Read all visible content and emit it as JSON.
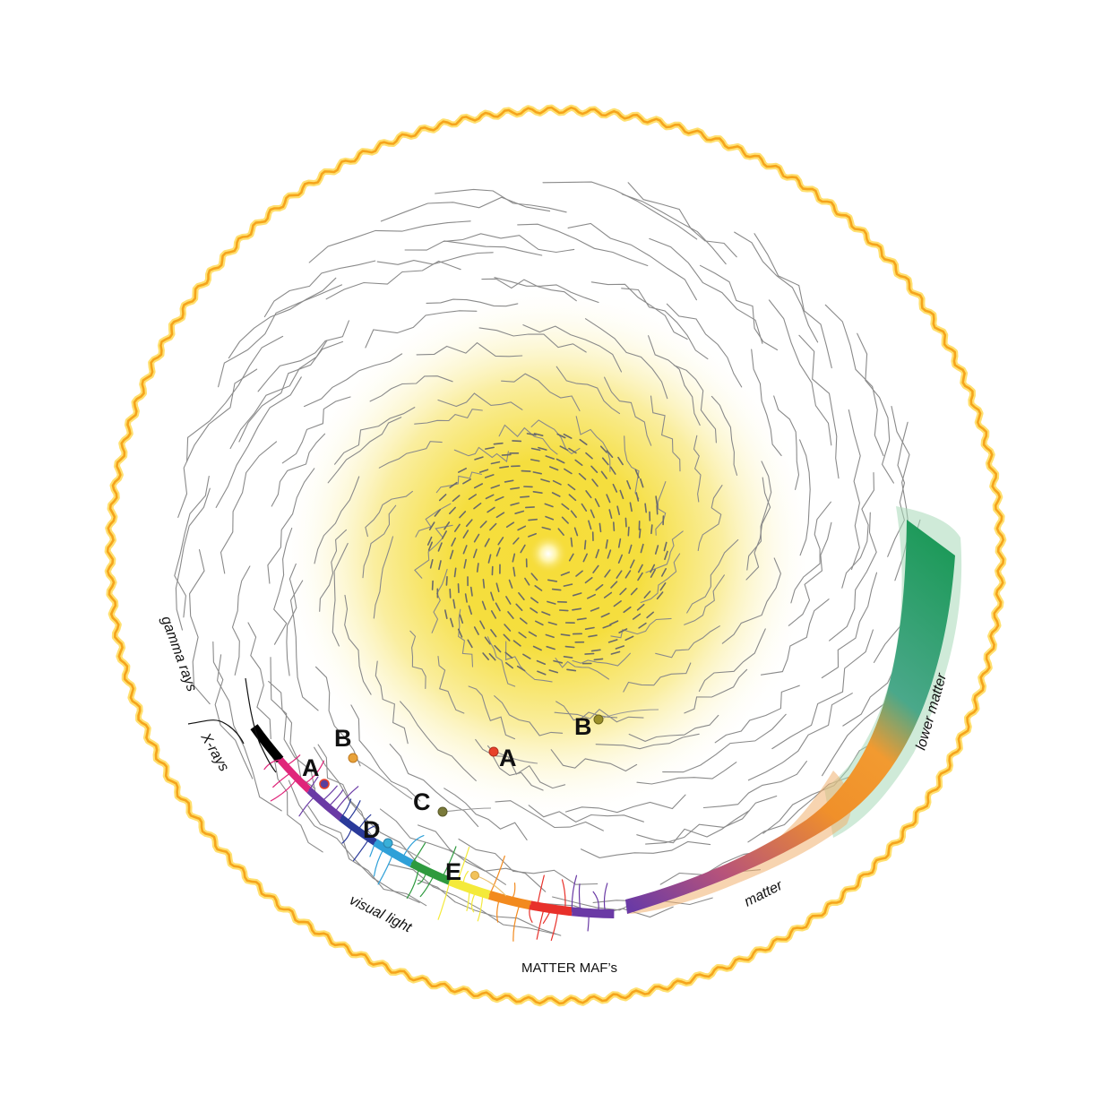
{
  "labels": {
    "gamma_rays": "gamma rays",
    "x_rays": "X-rays",
    "visual_light": "visual light",
    "matter_mafs": "MATTER MAF’s",
    "matter": "matter",
    "lower_matter": "lower matter"
  },
  "markers": [
    {
      "letter": "A",
      "color": "#e8412a"
    },
    {
      "letter": "B",
      "color": "#9a8f2a"
    },
    {
      "letter": "A",
      "color": "#5b3e9c"
    },
    {
      "letter": "B",
      "color": "#e8a23a"
    },
    {
      "letter": "C",
      "color": "#7a7a3a"
    },
    {
      "letter": "D",
      "color": "#3ab0d8"
    },
    {
      "letter": "E",
      "color": "#f2c25a"
    }
  ],
  "spectrum_colors": [
    "#000000",
    "#e0257a",
    "#6a3aa5",
    "#2a3a9a",
    "#2fa0d8",
    "#2e9a3e",
    "#f4ea3a",
    "#f28a1e",
    "#e8302a",
    "#6a3aa5"
  ],
  "colors": {
    "boundary": "#f5a41c",
    "core": "#f2d42a",
    "lower_matter_band": "#1e9a5a",
    "matter_band": "#f0902a"
  }
}
